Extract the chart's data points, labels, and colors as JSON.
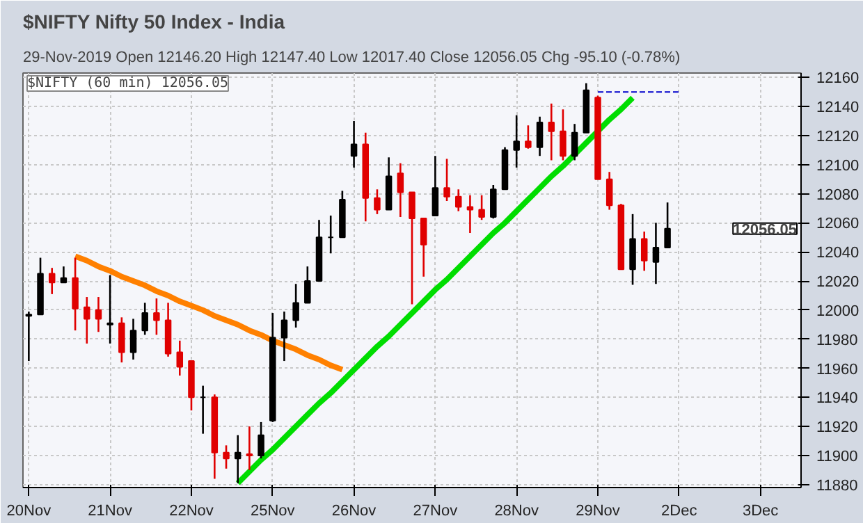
{
  "chart_data": {
    "type": "candlestick",
    "title": "$NIFTY Nifty 50 Index - India",
    "subtitle": "29-Nov-2019      Open 12146.20   High 12147.40   Low 12017.40   Close 12056.05   Chg -95.10 (-0.78%)",
    "annotations": [
      "$NIFTY (60 min) 12056.05",
      "12056.05"
    ],
    "categories": [
      "20Nov",
      null,
      null,
      null,
      null,
      null,
      null,
      "21Nov",
      null,
      null,
      null,
      null,
      null,
      null,
      "22Nov",
      null,
      null,
      null,
      null,
      null,
      null,
      "25Nov",
      null,
      null,
      null,
      null,
      null,
      null,
      "26Nov",
      null,
      null,
      null,
      null,
      null,
      null,
      "27Nov",
      null,
      null,
      null,
      null,
      null,
      null,
      "28Nov",
      null,
      null,
      null,
      null,
      null,
      null,
      "29Nov",
      null,
      null,
      null,
      null,
      null,
      null,
      "2Dec",
      null,
      null,
      null,
      null,
      null,
      null,
      "3Dec",
      null,
      null,
      null
    ],
    "ohlc": [
      [
        11996,
        11999,
        11965,
        11997
      ],
      [
        11997,
        12036,
        11997,
        12025
      ],
      [
        12025,
        12029,
        12011,
        12019
      ],
      [
        12019,
        12030,
        12019,
        12022
      ],
      [
        12022,
        12036,
        11986,
        12001
      ],
      [
        12002,
        12009,
        11977,
        11994
      ],
      [
        12000,
        12009,
        11985,
        11994
      ],
      [
        11990,
        12024,
        11977,
        11991
      ],
      [
        11991,
        11995,
        11964,
        11971
      ],
      [
        11971,
        11994,
        11966,
        11986
      ],
      [
        11986,
        12005,
        11983,
        11998
      ],
      [
        11998,
        12008,
        11983,
        11993
      ],
      [
        11993,
        12005,
        11968,
        11970
      ],
      [
        11971,
        11979,
        11955,
        11961
      ],
      [
        11965,
        11965,
        11931,
        11940
      ],
      [
        11940,
        11948,
        11915,
        11940
      ],
      [
        11940,
        11942,
        11884,
        11902
      ],
      [
        11902,
        11907,
        11891,
        11898
      ],
      [
        11898,
        11914,
        11881,
        11902
      ],
      [
        11901,
        11920,
        11890,
        11900
      ],
      [
        11900,
        11923,
        11898,
        11914
      ],
      [
        11924,
        11998,
        11923,
        11981
      ],
      [
        11981,
        11999,
        11965,
        11993
      ],
      [
        11993,
        12018,
        11988,
        12005
      ],
      [
        12005,
        12030,
        12005,
        12020
      ],
      [
        12020,
        12062,
        12020,
        12050
      ],
      [
        12050,
        12065,
        12039,
        12050
      ],
      [
        12050,
        12082,
        12050,
        12076
      ],
      [
        12106,
        12130,
        12098,
        12114
      ],
      [
        12114,
        12122,
        12061,
        12077
      ],
      [
        12077,
        12083,
        12066,
        12069
      ],
      [
        12069,
        12105,
        12069,
        12092
      ],
      [
        12094,
        12101,
        12064,
        12081
      ],
      [
        12081,
        12081,
        12004,
        12063
      ],
      [
        12063,
        12063,
        12023,
        12045
      ],
      [
        12065,
        12106,
        12065,
        12084
      ],
      [
        12084,
        12104,
        12075,
        12078
      ],
      [
        12078,
        12083,
        12068,
        12071
      ],
      [
        12071,
        12079,
        12053,
        12069
      ],
      [
        12069,
        12079,
        12062,
        12064
      ],
      [
        12064,
        12086,
        12063,
        12083
      ],
      [
        12083,
        12112,
        12083,
        12110
      ],
      [
        12110,
        12134,
        12098,
        12116
      ],
      [
        12116,
        12127,
        12111,
        12112
      ],
      [
        12112,
        12133,
        12106,
        12129
      ],
      [
        12129,
        12142,
        12103,
        12123
      ],
      [
        12123,
        12138,
        12103,
        12106
      ],
      [
        12106,
        12128,
        12103,
        12122
      ],
      [
        12122,
        12156,
        12122,
        12151.15
      ],
      [
        12146.2,
        12147.4,
        12090,
        12090
      ],
      [
        12090,
        12095,
        12069,
        12072
      ],
      [
        12072,
        12073,
        12028,
        12028
      ],
      [
        12028,
        12066,
        12017.4,
        12049
      ],
      [
        12049,
        12054,
        12027,
        12034
      ],
      [
        12033,
        12060,
        12018,
        12043
      ],
      [
        12043,
        12074,
        12043,
        12056.05
      ],
      null,
      null,
      null,
      null,
      null,
      null,
      null,
      null,
      null,
      null,
      null
    ],
    "colors": [
      "#000000",
      "#000000",
      "#e00000",
      "#000000",
      "#e00000",
      "#e00000",
      "#e00000",
      "#000000",
      "#e00000",
      "#000000",
      "#000000",
      "#e00000",
      "#e00000",
      "#e00000",
      "#e00000",
      "#000000",
      "#e00000",
      "#e00000",
      "#000000",
      "#e00000",
      "#000000",
      "#000000",
      "#000000",
      "#000000",
      "#000000",
      "#000000",
      "#000000",
      "#000000",
      "#000000",
      "#e00000",
      "#e00000",
      "#000000",
      "#e00000",
      "#e00000",
      "#e00000",
      "#000000",
      "#e00000",
      "#e00000",
      "#e00000",
      "#e00000",
      "#000000",
      "#000000",
      "#000000",
      "#e00000",
      "#000000",
      "#e00000",
      "#e00000",
      "#000000",
      "#000000",
      "#e00000",
      "#e00000",
      "#e00000",
      "#000000",
      "#e00000",
      "#000000",
      "#000000",
      null,
      null,
      null,
      null,
      null,
      null,
      null,
      null,
      null,
      null,
      null
    ],
    "series": [
      {
        "type": "line",
        "color": "#ff8000",
        "values": [
          null,
          null,
          null,
          null,
          12037,
          12034,
          12030,
          12027,
          12023,
          12020,
          12017,
          12013,
          12010,
          12006,
          12003,
          12000,
          11996,
          11993,
          11990,
          11986,
          11983,
          11979,
          11976,
          11973,
          11969,
          11966,
          11962,
          11959,
          null,
          null,
          null,
          null,
          null,
          null,
          null,
          null,
          null,
          null,
          null,
          null,
          null,
          null,
          null,
          null,
          null,
          null,
          null,
          null,
          null,
          null,
          null,
          null,
          null,
          null,
          null,
          null,
          null,
          null,
          null,
          null,
          null,
          null,
          null,
          null,
          null,
          null,
          null
        ]
      },
      {
        "type": "line",
        "color": "#00dd00",
        "values": [
          null,
          null,
          null,
          null,
          null,
          null,
          null,
          null,
          null,
          null,
          null,
          null,
          null,
          null,
          null,
          null,
          null,
          null,
          11881,
          11889,
          11897,
          11904,
          11912,
          11920,
          11928,
          11936,
          11943,
          11951,
          11959,
          11967,
          11975,
          11982,
          11990,
          11998,
          12006,
          12014,
          12021,
          12029,
          12037,
          12045,
          12053,
          12060,
          12068,
          12076,
          12084,
          12092,
          12099,
          12107,
          12115,
          12123,
          12131,
          12138,
          12146,
          null,
          null,
          null,
          null,
          null,
          null,
          null,
          null,
          null,
          null,
          null,
          null,
          null,
          null
        ]
      },
      {
        "type": "line",
        "color": "#0000cc",
        "line_style": "dashed",
        "values": [
          null,
          null,
          null,
          null,
          null,
          null,
          null,
          null,
          null,
          null,
          null,
          null,
          null,
          null,
          null,
          null,
          null,
          null,
          null,
          null,
          null,
          null,
          null,
          null,
          null,
          null,
          null,
          null,
          null,
          null,
          null,
          null,
          null,
          null,
          null,
          null,
          null,
          null,
          null,
          null,
          null,
          null,
          null,
          null,
          null,
          null,
          null,
          null,
          null,
          12150,
          12150,
          12150,
          12150,
          12150,
          12150,
          12150,
          12150,
          null,
          null,
          null,
          null,
          null,
          null,
          null,
          null,
          null,
          null
        ]
      }
    ],
    "ylim": [
      11878,
      12163
    ],
    "yticks": [
      11880,
      11900,
      11920,
      11940,
      11960,
      11980,
      12000,
      12020,
      12040,
      12060,
      12080,
      12100,
      12120,
      12140,
      12160
    ],
    "grid": true
  }
}
